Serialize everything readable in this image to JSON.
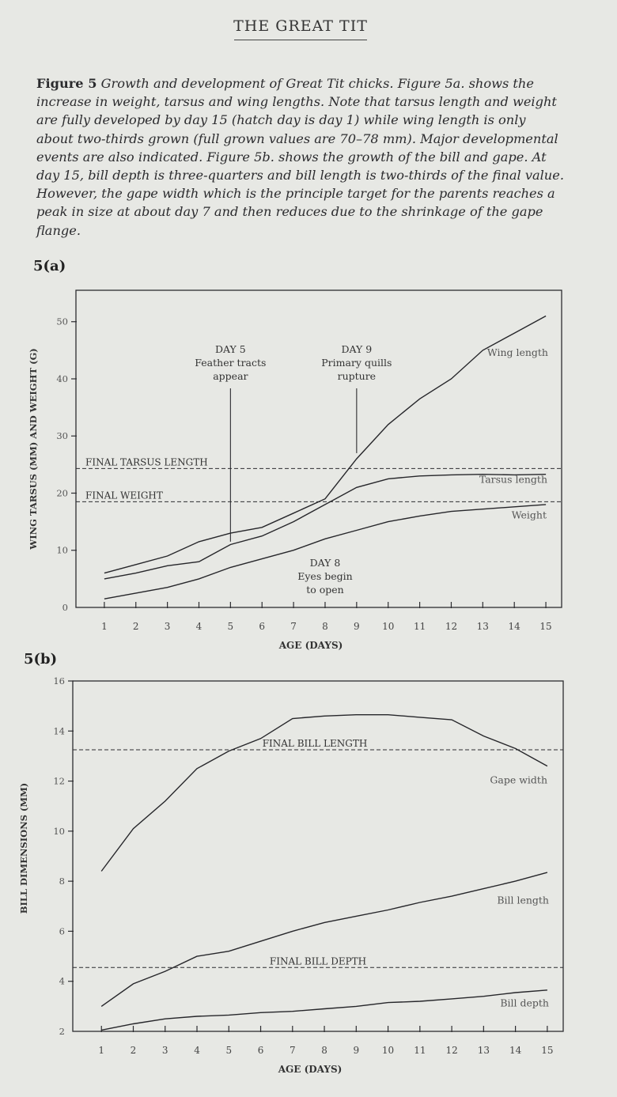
{
  "page": {
    "running_head": "THE GREAT TIT",
    "caption_label": "Figure 5",
    "caption_text": "Growth and development of Great Tit chicks. Figure 5a. shows the increase in weight, tarsus and wing lengths. Note that tarsus length and weight are fully developed by day 15 (hatch day is day 1) while wing length is only about two-thirds grown (full grown values are 70–78 mm). Major developmental events are also indicated. Figure 5b. shows the growth of the bill and gape. At day 15, bill depth is three-quarters and bill length is two-thirds of the final value. However, the gape width which is the principle target for the parents reaches a peak in size at about day 7 and then reduces due to the shrinkage of the gape flange.",
    "panel_a_label": "5(a)",
    "panel_b_label": "5(b)"
  },
  "chart_data": [
    {
      "type": "line",
      "panel": "5(a)",
      "xlabel": "AGE (DAYS)",
      "ylabel": "WING TARSUS (MM) AND WEIGHT (G)",
      "x": [
        1,
        2,
        3,
        4,
        5,
        6,
        7,
        8,
        9,
        10,
        11,
        12,
        13,
        14,
        15
      ],
      "xlim": [
        0.1,
        15.5
      ],
      "ylim": [
        0,
        55.5
      ],
      "yticks": [
        0,
        10,
        20,
        30,
        40,
        50
      ],
      "grid": false,
      "series": [
        {
          "name": "Wing length",
          "values": [
            6,
            7.5,
            9,
            11.5,
            13,
            14,
            16.5,
            19,
            26,
            32,
            36.5,
            40,
            45,
            48,
            51
          ]
        },
        {
          "name": "Tarsus length",
          "values": [
            5,
            6,
            7.3,
            8,
            11,
            12.5,
            15,
            18,
            21,
            22.5,
            23,
            23.2,
            23.3,
            23.2,
            23.3
          ]
        },
        {
          "name": "Weight",
          "values": [
            1.5,
            2.5,
            3.5,
            5,
            7,
            8.5,
            10,
            12,
            13.5,
            15,
            16,
            16.8,
            17.2,
            17.6,
            18
          ]
        }
      ],
      "reference_lines": [
        {
          "label": "FINAL TARSUS LENGTH",
          "y": 24.3
        },
        {
          "label": "FINAL WEIGHT",
          "y": 18.5
        }
      ],
      "annotations": [
        {
          "lines": [
            "DAY 5",
            "Feather tracts",
            "appear"
          ],
          "x": 5
        },
        {
          "lines": [
            "DAY 9",
            "Primary quills",
            "rupture"
          ],
          "x": 9
        },
        {
          "lines": [
            "DAY 8",
            "Eyes begin",
            "to open"
          ],
          "x": 8
        }
      ]
    },
    {
      "type": "line",
      "panel": "5(b)",
      "xlabel": "AGE (DAYS)",
      "ylabel": "BILL DIMENSIONS (MM)",
      "x": [
        1,
        2,
        3,
        4,
        5,
        6,
        7,
        8,
        9,
        10,
        11,
        12,
        13,
        14,
        15
      ],
      "xlim": [
        0.1,
        15.5
      ],
      "ylim": [
        2,
        16
      ],
      "yticks": [
        2,
        4,
        6,
        8,
        10,
        12,
        14,
        16
      ],
      "grid": false,
      "series": [
        {
          "name": "Gape width",
          "values": [
            8.4,
            10.1,
            11.2,
            12.5,
            13.2,
            13.7,
            14.5,
            14.6,
            14.65,
            14.65,
            14.55,
            14.45,
            13.8,
            13.3,
            12.6
          ]
        },
        {
          "name": "Bill length",
          "values": [
            3,
            3.9,
            4.4,
            5,
            5.2,
            5.6,
            6,
            6.35,
            6.6,
            6.85,
            7.15,
            7.4,
            7.7,
            8,
            8.35
          ]
        },
        {
          "name": "Bill depth",
          "values": [
            2.05,
            2.3,
            2.5,
            2.6,
            2.65,
            2.75,
            2.8,
            2.9,
            3,
            3.15,
            3.2,
            3.3,
            3.4,
            3.55,
            3.65
          ]
        }
      ],
      "reference_lines": [
        {
          "label": "FINAL BILL LENGTH",
          "y": 13.25
        },
        {
          "label": "FINAL BILL DEPTH",
          "y": 4.55
        }
      ]
    }
  ]
}
